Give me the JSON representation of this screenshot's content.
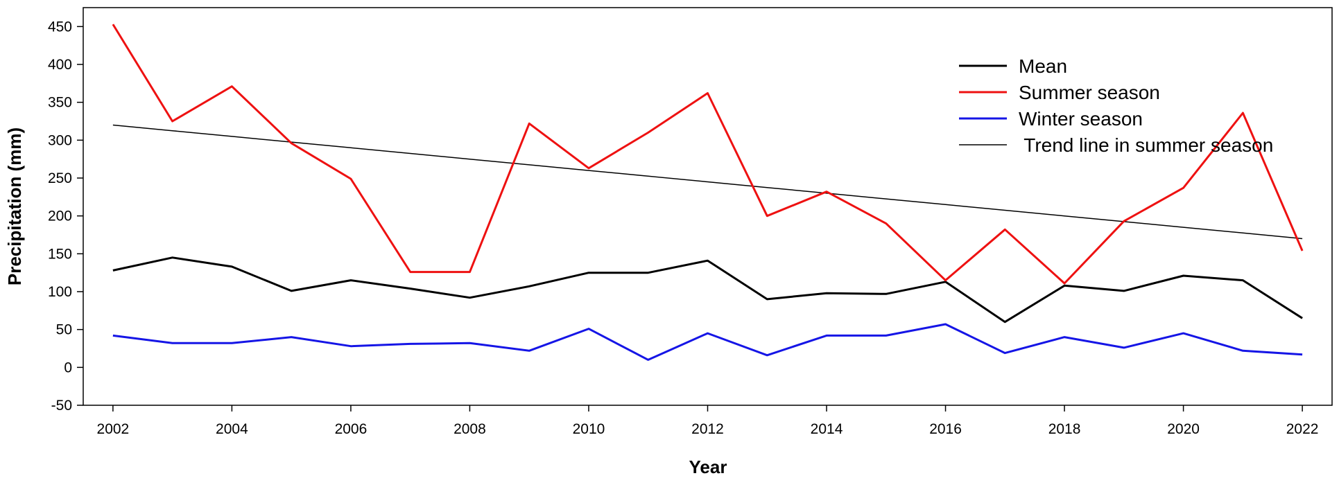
{
  "chart_data": {
    "type": "line",
    "title": "",
    "xlabel": "Year",
    "ylabel": "Precipitation (mm)",
    "xlim": [
      2001.5,
      2022.5
    ],
    "ylim": [
      -50,
      475
    ],
    "xticks": [
      2002,
      2004,
      2006,
      2008,
      2010,
      2012,
      2014,
      2016,
      2018,
      2020,
      2022
    ],
    "yticks": [
      -50,
      0,
      50,
      100,
      150,
      200,
      250,
      300,
      350,
      400,
      450
    ],
    "grid": false,
    "legend_position": "top-right",
    "x": [
      2002,
      2003,
      2004,
      2005,
      2006,
      2007,
      2008,
      2009,
      2010,
      2011,
      2012,
      2013,
      2014,
      2015,
      2016,
      2017,
      2018,
      2019,
      2020,
      2021,
      2022
    ],
    "series": [
      {
        "name": "Mean",
        "color": "#000000",
        "width": 3,
        "values": [
          128,
          145,
          133,
          101,
          115,
          104,
          92,
          107,
          125,
          125,
          141,
          90,
          98,
          97,
          113,
          60,
          108,
          101,
          121,
          115,
          65
        ]
      },
      {
        "name": "Summer season",
        "color": "#ee1111",
        "width": 3,
        "values": [
          453,
          325,
          371,
          296,
          249,
          126,
          126,
          322,
          263,
          310,
          362,
          200,
          232,
          190,
          115,
          182,
          111,
          193,
          237,
          336,
          154
        ]
      },
      {
        "name": "Winter season",
        "color": "#1515e6",
        "width": 3,
        "values": [
          42,
          32,
          32,
          40,
          28,
          31,
          32,
          22,
          51,
          10,
          45,
          16,
          42,
          42,
          57,
          19,
          40,
          26,
          45,
          22,
          17
        ]
      },
      {
        "name": " Trend line in summer season",
        "color": "#000000",
        "width": 1.5,
        "values": [
          320,
          312.5,
          305,
          297.5,
          290,
          282.5,
          275,
          267.5,
          260,
          252.5,
          245,
          237.5,
          230,
          222.5,
          215,
          207.5,
          200,
          192.5,
          185,
          177.5,
          170
        ]
      }
    ]
  }
}
